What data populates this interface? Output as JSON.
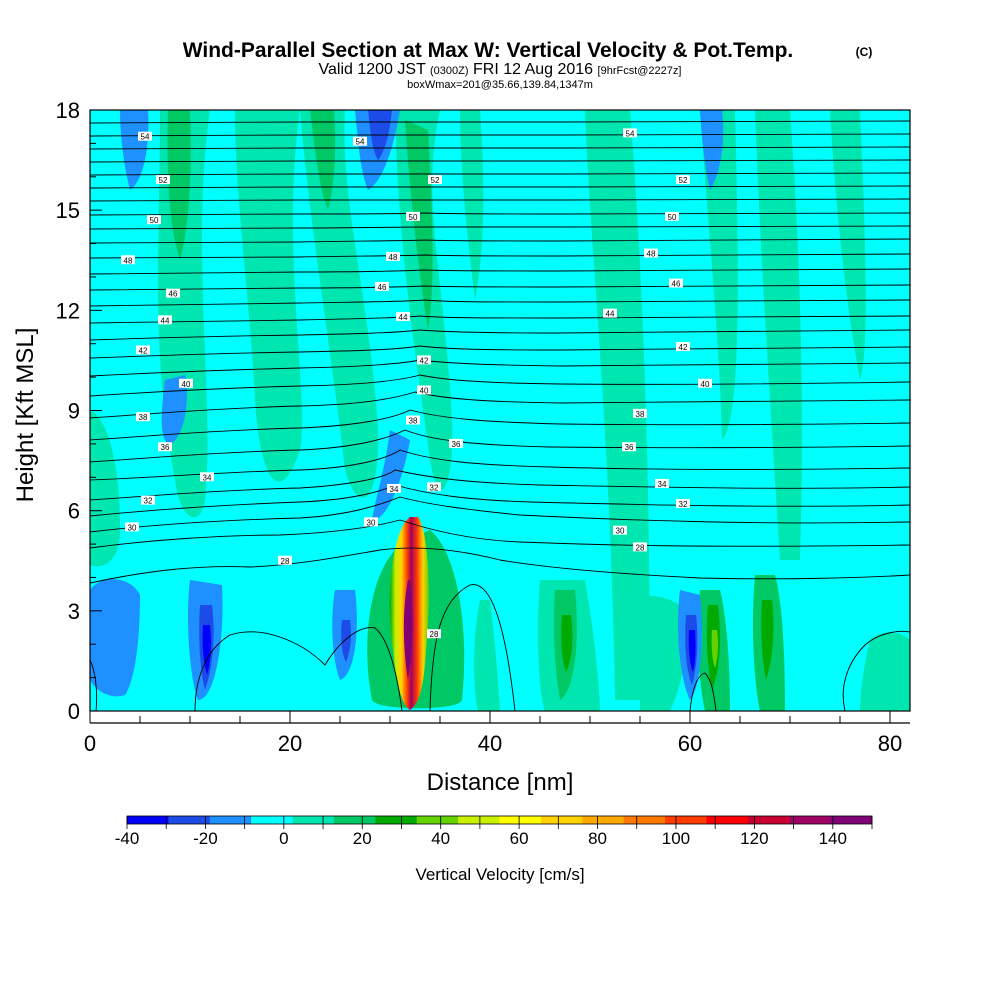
{
  "header": {
    "title": "Wind-Parallel Section at Max W: Vertical Velocity & Pot.Temp.",
    "copyright": "(C)",
    "valid_prefix": "Valid 1200 JST",
    "valid_utc": "(0300Z)",
    "valid_date": "FRI 12 Aug 2016",
    "forecast": "[9hrFcst@2227z]",
    "box_info": "boxWmax=201@35.66,139.84,1347m"
  },
  "colorbar": {
    "label": "Vertical Velocity [cm/s]",
    "tick_labels": [
      "-40",
      "-20",
      "0",
      "20",
      "40",
      "60",
      "80",
      "100",
      "120",
      "140"
    ],
    "colors": [
      "#0000ff",
      "#1c4be8",
      "#1e90ff",
      "#00ffff",
      "#00e6b0",
      "#00c864",
      "#00aa00",
      "#64d200",
      "#c8f000",
      "#ffff00",
      "#ffd200",
      "#ffaa00",
      "#ff7800",
      "#ff3c00",
      "#ff0000",
      "#c80032",
      "#a00064",
      "#800078"
    ]
  },
  "chart_data": {
    "type": "heatmap",
    "xlabel": "Distance [nm]",
    "ylabel": "Height [Kft MSL]",
    "xlim": [
      0,
      82
    ],
    "ylim": [
      0,
      18
    ],
    "x_ticks": [
      0,
      20,
      40,
      60,
      80
    ],
    "y_ticks": [
      0,
      3,
      6,
      9,
      12,
      15,
      18
    ],
    "variable": "Vertical Velocity",
    "units": "cm/s",
    "value_range": [
      -40,
      150
    ],
    "contour_variable": "Potential temperature",
    "contour_levels": [
      26,
      28,
      30,
      32,
      34,
      36,
      38,
      40,
      42,
      44,
      46,
      48,
      50,
      52,
      54
    ],
    "max_updraft": {
      "x": 32,
      "y": 3,
      "value": 140
    },
    "features": [
      {
        "name": "main updraft",
        "x": 32,
        "y_range": [
          0.5,
          6
        ],
        "max_value": 140
      },
      {
        "name": "updraft",
        "x": 47.5,
        "y_range": [
          1,
          4
        ],
        "max_value": 25
      },
      {
        "name": "updraft",
        "x": 62.5,
        "y_range": [
          1,
          4
        ],
        "max_value": 40
      },
      {
        "name": "updraft",
        "x": 68,
        "y_range": [
          1,
          4
        ],
        "max_value": 35
      },
      {
        "name": "downdraft",
        "x": 12,
        "y_range": [
          1,
          3
        ],
        "max_value": -35
      },
      {
        "name": "downdraft",
        "x": 26,
        "y_range": [
          1.5,
          3
        ],
        "max_value": -25
      },
      {
        "name": "downdraft",
        "x": 61,
        "y_range": [
          1,
          3
        ],
        "max_value": -35
      },
      {
        "name": "downdraft",
        "x": 30.5,
        "y_range": [
          15.5,
          18
        ],
        "max_value": -35
      }
    ],
    "contour_labels": [
      {
        "text": "54",
        "x": 5.5,
        "y": 17.2
      },
      {
        "text": "54",
        "x": 27,
        "y": 17.05
      },
      {
        "text": "54",
        "x": 54,
        "y": 17.3
      },
      {
        "text": "52",
        "x": 7.3,
        "y": 15.9
      },
      {
        "text": "52",
        "x": 34.5,
        "y": 15.9
      },
      {
        "text": "52",
        "x": 59.3,
        "y": 15.9
      },
      {
        "text": "50",
        "x": 6.4,
        "y": 14.7
      },
      {
        "text": "50",
        "x": 32.3,
        "y": 14.8
      },
      {
        "text": "50",
        "x": 58.2,
        "y": 14.8
      },
      {
        "text": "48",
        "x": 3.8,
        "y": 13.5
      },
      {
        "text": "48",
        "x": 30.3,
        "y": 13.6
      },
      {
        "text": "48",
        "x": 56.1,
        "y": 13.7
      },
      {
        "text": "46",
        "x": 8.3,
        "y": 12.5
      },
      {
        "text": "46",
        "x": 29.2,
        "y": 12.7
      },
      {
        "text": "46",
        "x": 58.6,
        "y": 12.8
      },
      {
        "text": "44",
        "x": 7.5,
        "y": 11.7
      },
      {
        "text": "44",
        "x": 31.3,
        "y": 11.8
      },
      {
        "text": "44",
        "x": 52,
        "y": 11.9
      },
      {
        "text": "42",
        "x": 5.3,
        "y": 10.8
      },
      {
        "text": "42",
        "x": 33.4,
        "y": 10.5
      },
      {
        "text": "42",
        "x": 59.3,
        "y": 10.9
      },
      {
        "text": "40",
        "x": 9.6,
        "y": 9.8
      },
      {
        "text": "40",
        "x": 33.4,
        "y": 9.6
      },
      {
        "text": "40",
        "x": 61.5,
        "y": 9.8
      },
      {
        "text": "38",
        "x": 5.3,
        "y": 8.8
      },
      {
        "text": "38",
        "x": 32.3,
        "y": 8.7
      },
      {
        "text": "38",
        "x": 55,
        "y": 8.9
      },
      {
        "text": "36",
        "x": 7.5,
        "y": 7.9
      },
      {
        "text": "36",
        "x": 36.6,
        "y": 8
      },
      {
        "text": "36",
        "x": 53.9,
        "y": 7.9
      },
      {
        "text": "34",
        "x": 11.7,
        "y": 7
      },
      {
        "text": "34",
        "x": 30.4,
        "y": 6.65
      },
      {
        "text": "34",
        "x": 57.2,
        "y": 6.8
      },
      {
        "text": "32",
        "x": 5.8,
        "y": 6.3
      },
      {
        "text": "32",
        "x": 34.4,
        "y": 6.7
      },
      {
        "text": "32",
        "x": 59.3,
        "y": 6.2
      },
      {
        "text": "30",
        "x": 4.2,
        "y": 5.5
      },
      {
        "text": "30",
        "x": 28.1,
        "y": 5.65
      },
      {
        "text": "30",
        "x": 53,
        "y": 5.4
      },
      {
        "text": "28",
        "x": 19.5,
        "y": 4.5
      },
      {
        "text": "28",
        "x": 55,
        "y": 4.9
      },
      {
        "text": "28",
        "x": 34.4,
        "y": 2.3
      }
    ]
  }
}
